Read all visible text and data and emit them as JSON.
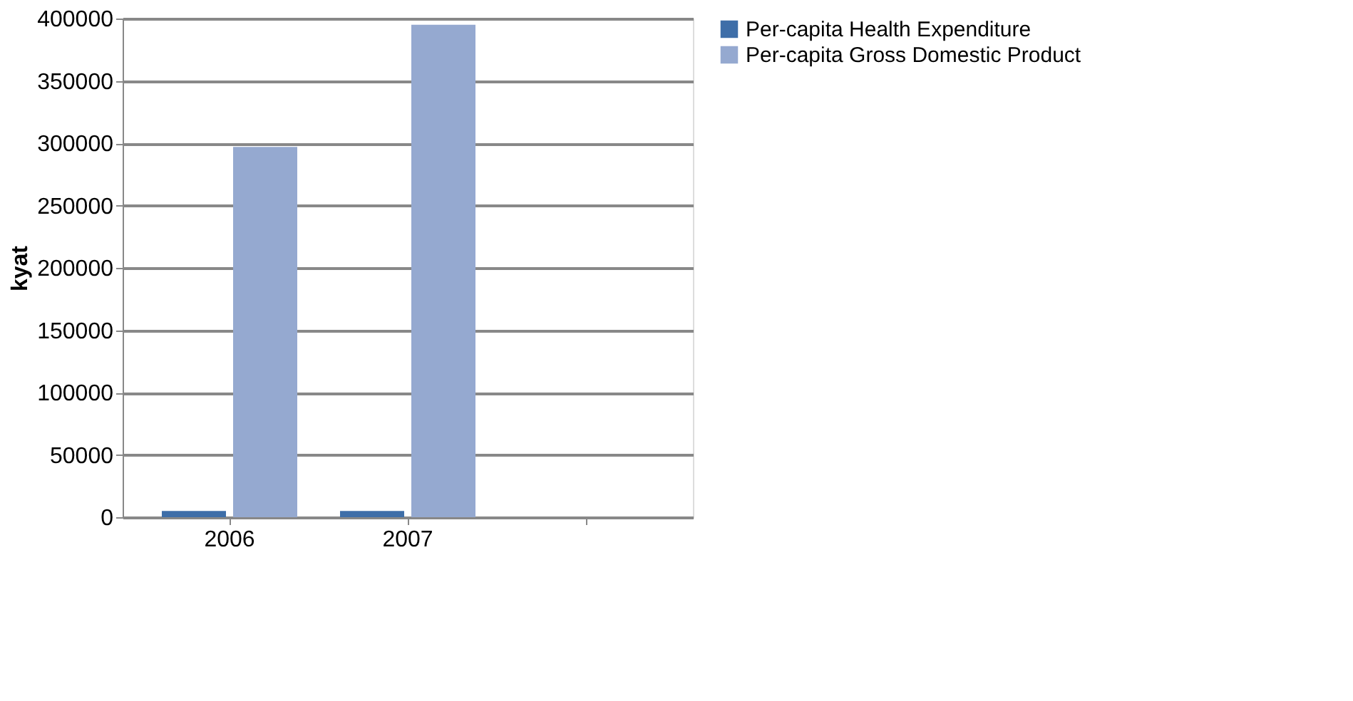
{
  "chart_data": {
    "type": "bar",
    "ylabel": "kyat",
    "categories": [
      "2006",
      "2007",
      null
    ],
    "series": [
      {
        "name": "Per-capita Health Expenditure",
        "color": "#3e6ea8",
        "values": [
          5000,
          5000,
          null
        ]
      },
      {
        "name": "Per-capita Gross Domestic Product",
        "color": "#95a9d0",
        "values": [
          297000,
          395000,
          null
        ]
      }
    ],
    "ylim": [
      0,
      400000
    ],
    "yticks": [
      0,
      50000,
      100000,
      150000,
      200000,
      250000,
      300000,
      350000,
      400000
    ],
    "grid": "y",
    "legend": "right"
  }
}
